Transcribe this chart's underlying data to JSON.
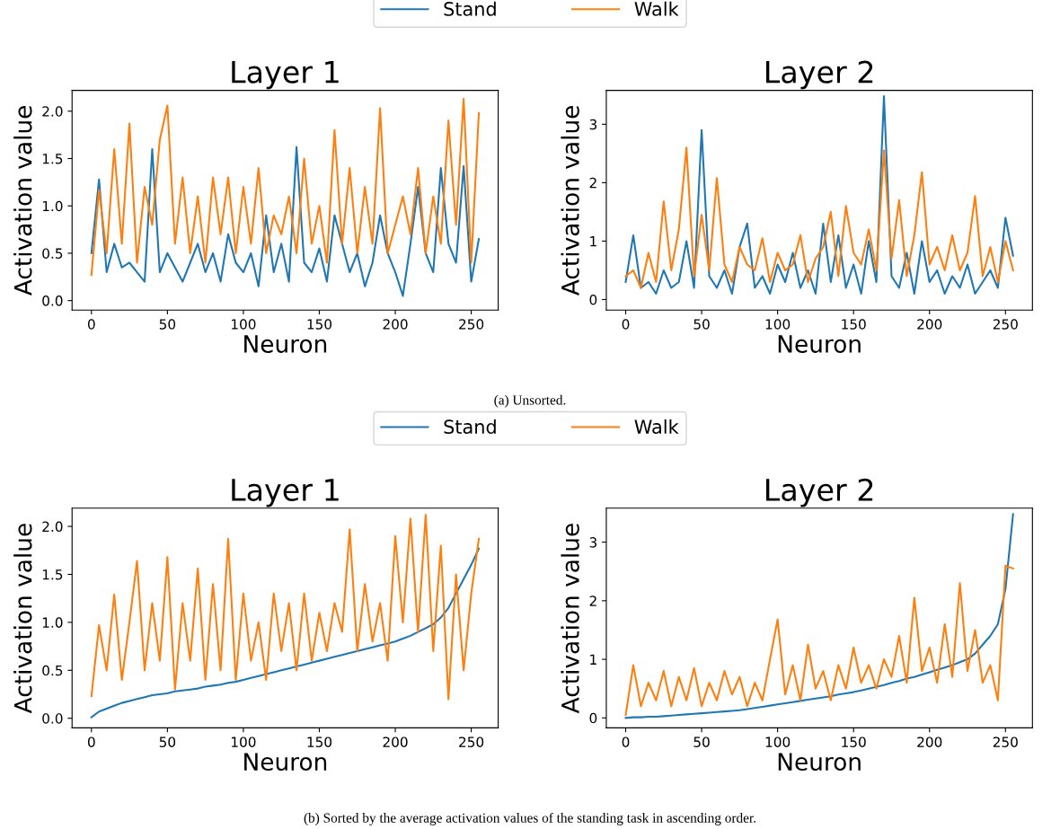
{
  "chart_data": [
    {
      "type": "line",
      "title": "Layer 1",
      "xlabel": "Neuron",
      "ylabel": "Activation value",
      "legend": "top",
      "grid": false,
      "x": [
        0,
        5,
        10,
        15,
        20,
        25,
        30,
        35,
        40,
        45,
        50,
        55,
        60,
        65,
        70,
        75,
        80,
        85,
        90,
        95,
        100,
        105,
        110,
        115,
        120,
        125,
        130,
        135,
        140,
        145,
        150,
        155,
        160,
        165,
        170,
        175,
        180,
        185,
        190,
        195,
        200,
        205,
        210,
        215,
        220,
        225,
        230,
        235,
        240,
        245,
        250,
        255
      ],
      "xlim": [
        -12.75,
        267.75
      ],
      "xticks": [
        0,
        50,
        100,
        150,
        200,
        250
      ],
      "ylim": [
        -0.1,
        2.22
      ],
      "yticks": [
        {
          "value": 0,
          "label": "0.0"
        },
        0.5,
        {
          "value": 1,
          "label": "1.0"
        },
        1.5,
        {
          "value": 2,
          "label": "2.0"
        }
      ],
      "series": [
        {
          "name": "Stand",
          "color": "#1f77b4",
          "values": [
            0.5,
            1.28,
            0.3,
            0.6,
            0.35,
            0.4,
            0.3,
            0.2,
            1.6,
            0.3,
            0.5,
            0.35,
            0.2,
            0.4,
            0.6,
            0.3,
            0.5,
            0.2,
            0.7,
            0.4,
            0.3,
            0.5,
            0.15,
            0.9,
            0.3,
            0.6,
            0.2,
            1.62,
            0.4,
            0.3,
            0.55,
            0.2,
            0.9,
            0.6,
            0.3,
            0.5,
            0.15,
            0.4,
            0.9,
            0.5,
            0.3,
            0.05,
            0.6,
            1.2,
            0.5,
            0.3,
            1.4,
            0.6,
            0.4,
            1.42,
            0.2,
            0.65
          ]
        },
        {
          "name": "Walk",
          "color": "#ff7f0e",
          "values": [
            0.27,
            1.17,
            0.5,
            1.6,
            0.6,
            1.87,
            0.4,
            1.2,
            0.8,
            1.7,
            2.06,
            0.6,
            1.3,
            0.5,
            1.1,
            0.4,
            1.3,
            0.7,
            1.3,
            0.5,
            1.2,
            0.6,
            1.4,
            0.5,
            0.9,
            0.7,
            1.1,
            0.5,
            1.5,
            0.6,
            1.0,
            0.4,
            1.8,
            0.6,
            1.4,
            0.5,
            1.2,
            0.6,
            2.03,
            0.5,
            0.8,
            1.1,
            0.7,
            1.4,
            0.5,
            1.1,
            0.6,
            1.9,
            0.8,
            2.13,
            0.4,
            1.98
          ]
        }
      ]
    },
    {
      "type": "line",
      "title": "Layer 2",
      "xlabel": "Neuron",
      "ylabel": "Activation value",
      "grid": false,
      "annotations": [
        "(a) Unsorted."
      ],
      "x": [
        0,
        5,
        10,
        15,
        20,
        25,
        30,
        35,
        40,
        45,
        50,
        55,
        60,
        65,
        70,
        75,
        80,
        85,
        90,
        95,
        100,
        105,
        110,
        115,
        120,
        125,
        130,
        135,
        140,
        145,
        150,
        155,
        160,
        165,
        170,
        175,
        180,
        185,
        190,
        195,
        200,
        205,
        210,
        215,
        220,
        225,
        230,
        235,
        240,
        245,
        250,
        255
      ],
      "xlim": [
        -12.75,
        267.75
      ],
      "xticks": [
        0,
        50,
        100,
        150,
        200,
        250
      ],
      "ylim": [
        -0.18,
        3.58
      ],
      "yticks": [
        0,
        1,
        2,
        3
      ],
      "series": [
        {
          "color": "#1f77b4",
          "values": [
            0.3,
            1.1,
            0.2,
            0.3,
            0.1,
            0.5,
            0.2,
            0.3,
            1.0,
            0.2,
            2.9,
            0.4,
            0.2,
            0.5,
            0.1,
            0.9,
            1.3,
            0.2,
            0.4,
            0.1,
            0.6,
            0.3,
            0.8,
            0.2,
            0.5,
            0.1,
            1.3,
            0.3,
            1.1,
            0.2,
            0.6,
            0.1,
            1.0,
            0.3,
            3.48,
            0.4,
            0.2,
            0.8,
            0.1,
            1.0,
            0.3,
            0.5,
            0.1,
            0.4,
            0.2,
            0.6,
            0.1,
            0.3,
            0.5,
            0.2,
            1.4,
            0.75
          ]
        },
        {
          "color": "#ff7f0e",
          "values": [
            0.4,
            0.5,
            0.2,
            0.8,
            0.3,
            1.68,
            0.5,
            1.2,
            2.6,
            0.4,
            1.45,
            0.5,
            2.08,
            0.6,
            0.3,
            0.9,
            0.6,
            0.5,
            1.05,
            0.3,
            0.8,
            0.5,
            0.6,
            1.1,
            0.3,
            0.7,
            0.9,
            1.5,
            0.4,
            1.6,
            0.8,
            0.6,
            1.2,
            0.5,
            2.55,
            0.7,
            1.7,
            0.4,
            1.1,
            2.18,
            0.6,
            0.9,
            0.5,
            1.1,
            0.5,
            0.8,
            1.77,
            0.4,
            0.9,
            0.3,
            1.0,
            0.5
          ]
        }
      ]
    },
    {
      "type": "line",
      "title": "Layer 1",
      "xlabel": "Neuron",
      "ylabel": "Activation value",
      "legend": "top",
      "grid": false,
      "x": [
        0,
        5,
        10,
        15,
        20,
        25,
        30,
        35,
        40,
        45,
        50,
        55,
        60,
        65,
        70,
        75,
        80,
        85,
        90,
        95,
        100,
        105,
        110,
        115,
        120,
        125,
        130,
        135,
        140,
        145,
        150,
        155,
        160,
        165,
        170,
        175,
        180,
        185,
        190,
        195,
        200,
        205,
        210,
        215,
        220,
        225,
        230,
        235,
        240,
        245,
        250,
        255
      ],
      "xlim": [
        -12.75,
        267.75
      ],
      "xticks": [
        0,
        50,
        100,
        150,
        200,
        250
      ],
      "ylim": [
        -0.1,
        2.19
      ],
      "yticks": [
        {
          "value": 0,
          "label": "0.0"
        },
        0.5,
        {
          "value": 1,
          "label": "1.0"
        },
        1.5,
        {
          "value": 2,
          "label": "2.0"
        }
      ],
      "series": [
        {
          "name": "Stand",
          "color": "#1f77b4",
          "values": [
            0.01,
            0.07,
            0.1,
            0.13,
            0.16,
            0.18,
            0.2,
            0.22,
            0.24,
            0.25,
            0.26,
            0.28,
            0.29,
            0.3,
            0.31,
            0.33,
            0.34,
            0.35,
            0.37,
            0.38,
            0.4,
            0.42,
            0.44,
            0.46,
            0.48,
            0.5,
            0.52,
            0.54,
            0.56,
            0.58,
            0.6,
            0.62,
            0.64,
            0.66,
            0.68,
            0.7,
            0.72,
            0.74,
            0.76,
            0.78,
            0.8,
            0.83,
            0.86,
            0.9,
            0.94,
            0.98,
            1.05,
            1.15,
            1.3,
            1.45,
            1.6,
            1.77
          ]
        },
        {
          "name": "Walk",
          "color": "#ff7f0e",
          "values": [
            0.23,
            0.97,
            0.5,
            1.29,
            0.4,
            1.0,
            1.64,
            0.5,
            1.2,
            0.6,
            1.68,
            0.3,
            1.2,
            0.6,
            1.56,
            0.4,
            1.4,
            0.5,
            1.87,
            0.4,
            1.3,
            0.6,
            1.0,
            0.4,
            1.3,
            0.7,
            1.2,
            0.5,
            1.3,
            0.6,
            1.1,
            0.7,
            1.2,
            0.9,
            1.97,
            0.7,
            1.4,
            0.8,
            1.2,
            0.6,
            1.9,
            1.0,
            2.08,
            0.9,
            2.12,
            0.7,
            1.8,
            0.2,
            1.5,
            0.5,
            1.3,
            1.87
          ]
        }
      ]
    },
    {
      "type": "line",
      "title": "Layer 2",
      "xlabel": "Neuron",
      "ylabel": "Activation value",
      "grid": false,
      "annotations": [
        "(b) Sorted by the average activation values of the standing task in ascending order."
      ],
      "x": [
        0,
        5,
        10,
        15,
        20,
        25,
        30,
        35,
        40,
        45,
        50,
        55,
        60,
        65,
        70,
        75,
        80,
        85,
        90,
        95,
        100,
        105,
        110,
        115,
        120,
        125,
        130,
        135,
        140,
        145,
        150,
        155,
        160,
        165,
        170,
        175,
        180,
        185,
        190,
        195,
        200,
        205,
        210,
        215,
        220,
        225,
        230,
        235,
        240,
        245,
        250,
        255
      ],
      "xlim": [
        -12.75,
        267.75
      ],
      "xticks": [
        0,
        50,
        100,
        150,
        200,
        250
      ],
      "ylim": [
        -0.17,
        3.58
      ],
      "yticks": [
        0,
        1,
        2,
        3
      ],
      "series": [
        {
          "color": "#1f77b4",
          "values": [
            0,
            0.01,
            0.01,
            0.02,
            0.02,
            0.03,
            0.04,
            0.05,
            0.06,
            0.07,
            0.08,
            0.09,
            0.1,
            0.11,
            0.12,
            0.13,
            0.15,
            0.17,
            0.19,
            0.21,
            0.23,
            0.25,
            0.27,
            0.29,
            0.31,
            0.33,
            0.35,
            0.37,
            0.4,
            0.42,
            0.44,
            0.47,
            0.5,
            0.53,
            0.56,
            0.6,
            0.63,
            0.67,
            0.7,
            0.74,
            0.78,
            0.82,
            0.86,
            0.9,
            0.95,
            1.0,
            1.1,
            1.25,
            1.4,
            1.6,
            2.2,
            3.48
          ]
        },
        {
          "color": "#ff7f0e",
          "values": [
            0.05,
            0.9,
            0.2,
            0.6,
            0.3,
            0.8,
            0.2,
            0.7,
            0.3,
            0.85,
            0.2,
            0.6,
            0.3,
            0.8,
            0.4,
            0.7,
            0.2,
            0.6,
            0.3,
            1.0,
            1.68,
            0.4,
            0.9,
            0.3,
            1.25,
            0.5,
            0.8,
            0.3,
            0.9,
            0.5,
            1.2,
            0.6,
            0.9,
            0.5,
            1.0,
            0.7,
            1.4,
            0.6,
            2.05,
            0.8,
            1.2,
            0.6,
            1.6,
            0.7,
            2.3,
            0.8,
            1.5,
            0.6,
            0.9,
            0.3,
            2.6,
            2.55
          ]
        }
      ]
    }
  ]
}
